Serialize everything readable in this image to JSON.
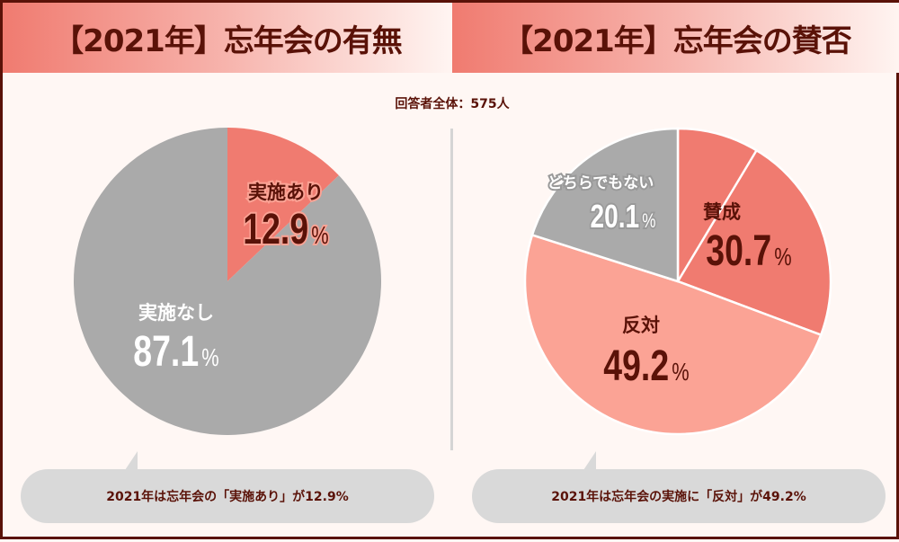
{
  "headers": {
    "left": "【2021年】忘年会の有無",
    "right": "【2021年】忘年会の賛否"
  },
  "respondents": "回答者全体：575人",
  "chart_data": [
    {
      "type": "pie",
      "title": "【2021年】忘年会の有無",
      "unit": "%",
      "slices": [
        {
          "name": "実施あり",
          "value": 12.9,
          "label": "12.9",
          "color": "#f07b70"
        },
        {
          "name": "実施なし",
          "value": 87.1,
          "label": "87.1",
          "color": "#aaaaaa"
        }
      ]
    },
    {
      "type": "pie",
      "title": "【2021年】忘年会の賛否",
      "unit": "%",
      "slices": [
        {
          "name": "賛成",
          "value": 30.7,
          "label": "30.7",
          "color": "#f07b70"
        },
        {
          "name": "反対",
          "value": 49.2,
          "label": "49.2",
          "color": "#fba395"
        },
        {
          "name": "どちらでもない",
          "value": 20.1,
          "label": "20.1",
          "color": "#aaaaaa"
        }
      ]
    }
  ],
  "percent_sign": "%",
  "callouts": {
    "left": "2021年は忘年会の「実施あり」が12.9%",
    "right": "2021年は忘年会の実施に「反対」が49.2%"
  }
}
